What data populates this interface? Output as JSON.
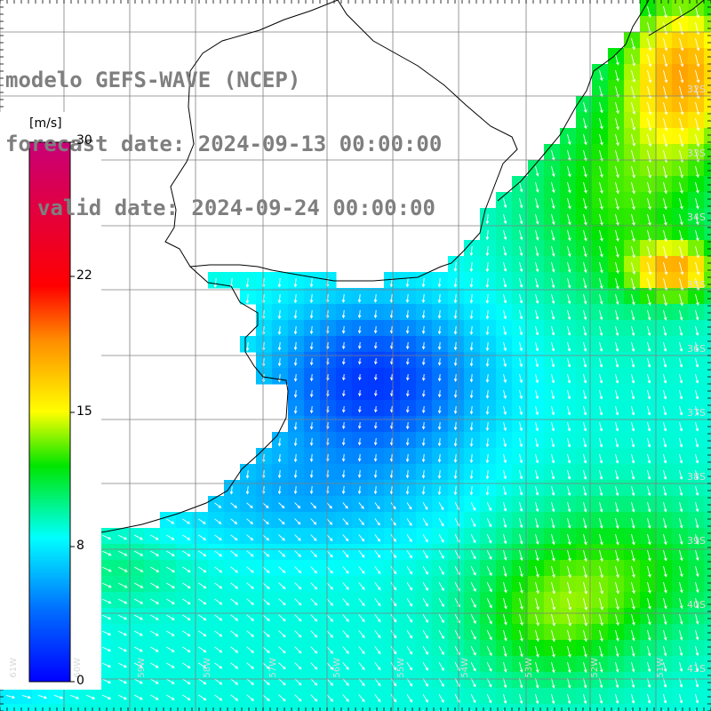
{
  "title": {
    "line1": "modelo GEFS-WAVE (NCEP)",
    "line2": "forecast date: 2024-09-13 00:00:00",
    "line3": "valid date: 2024-09-24 00:00:00"
  },
  "colorbar": {
    "unit": "[m/s]",
    "ticks": [
      "30",
      "22",
      "15",
      "8",
      "0"
    ],
    "range": [
      0,
      30
    ]
  },
  "lat_labels": [
    "32S",
    "33S",
    "34S",
    "35S",
    "36S",
    "37S",
    "38S",
    "39S",
    "40S",
    "41S"
  ],
  "lon_labels": [
    "61W",
    "60W",
    "59W",
    "58W",
    "57W",
    "56W",
    "55W",
    "54W",
    "53W",
    "52W",
    "51W",
    "50W"
  ],
  "colors": {
    "land": "#ffffff",
    "coast": "#000000",
    "grid": "#7f7f7f",
    "arrow": "#ffffff",
    "title": "#7f7f7f"
  }
}
